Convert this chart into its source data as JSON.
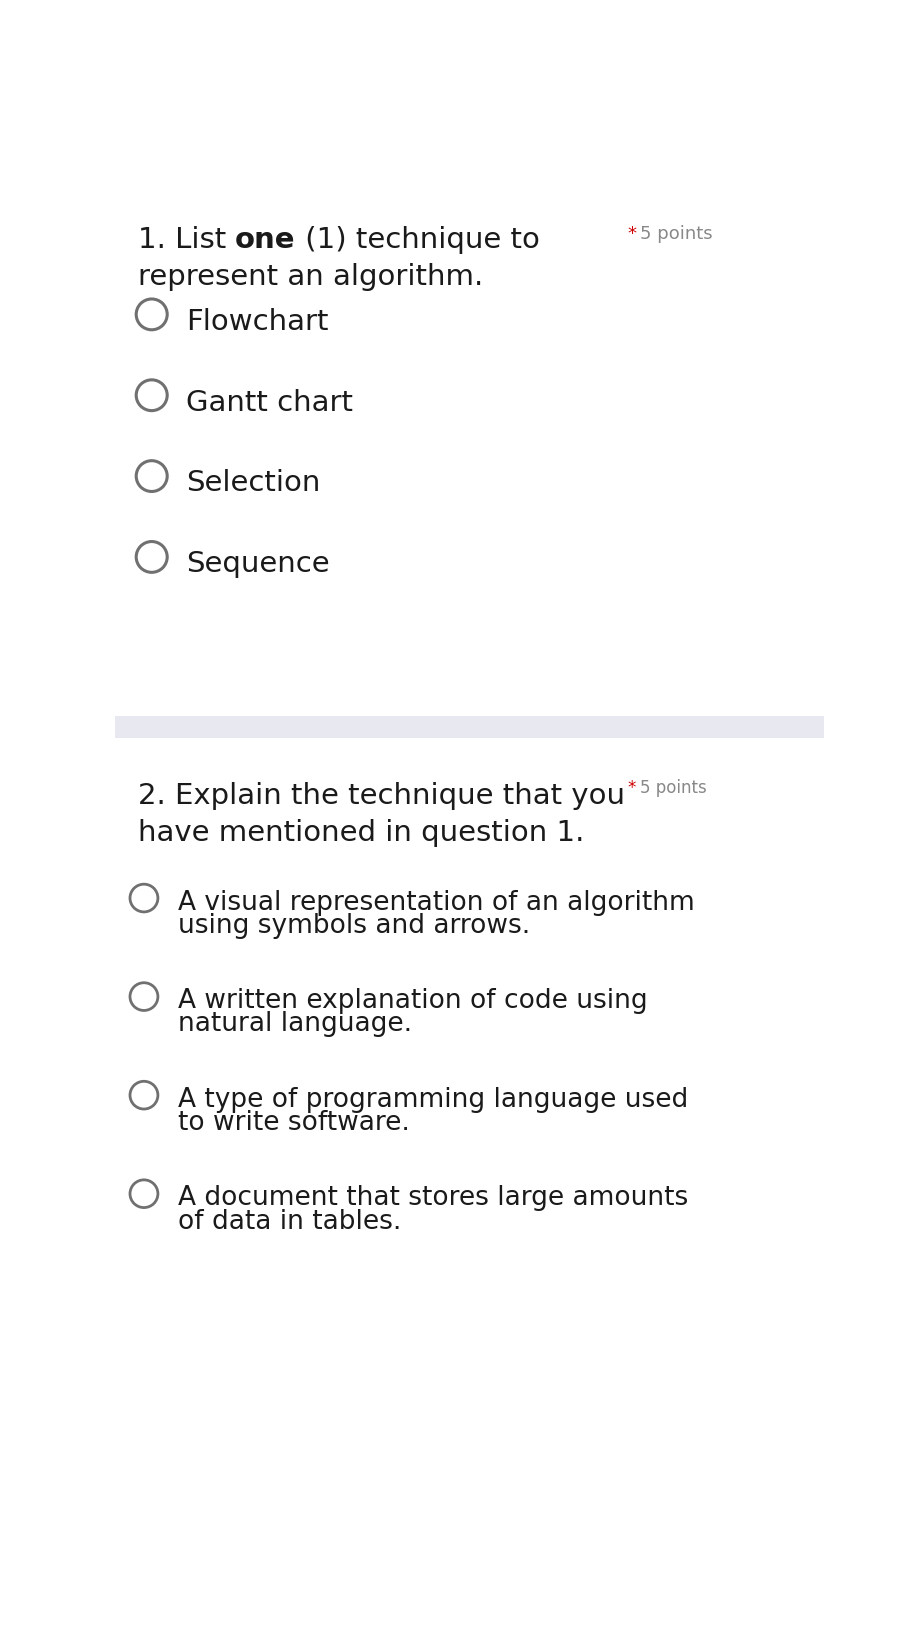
{
  "bg_color": "#ffffff",
  "divider_color": "#e8e8f0",
  "text_color": "#1a1a1a",
  "circle_edge_color": "#707070",
  "star_color": "#cc0000",
  "points_color": "#888888",
  "q1_line1_parts": [
    {
      "text": "1. List ",
      "bold": false
    },
    {
      "text": "one",
      "bold": true
    },
    {
      "text": " (1) technique to",
      "bold": false
    }
  ],
  "q1_line2": "represent an algorithm.",
  "q1_options": [
    "Flowchart",
    "Gantt chart",
    "Selection",
    "Sequence"
  ],
  "q2_line1": "2. Explain the technique that you",
  "q2_line2": "have mentioned in question 1.",
  "q2_options": [
    [
      "A visual representation of an algorithm",
      "using symbols and arrows."
    ],
    [
      "A written explanation of code using",
      "natural language."
    ],
    [
      "A type of programming language used",
      "to write software."
    ],
    [
      "A document that stores large amounts",
      "of data in tables."
    ]
  ],
  "font_size_q_title": 21,
  "font_size_q1_opt": 21,
  "font_size_q2_opt": 19,
  "font_size_points": 13,
  "points_star": "*",
  "points_text": "5 points",
  "figsize": [
    9.16,
    16.4
  ],
  "dpi": 100
}
